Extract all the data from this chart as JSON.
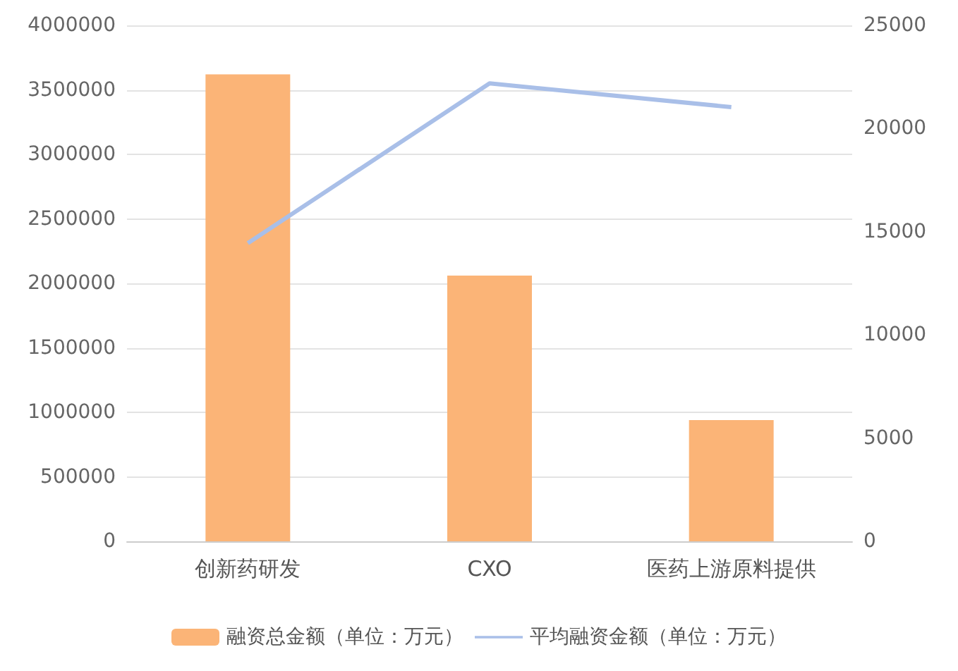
{
  "chart_data": {
    "type": "bar",
    "categories": [
      "创新药研发",
      "CXO",
      "医药上游原料提供"
    ],
    "series": [
      {
        "name": "融资总金额（单位：万元）",
        "color": "#fbb477",
        "values": [
          3620000,
          2060000,
          940000
        ]
      },
      {
        "name": "平均融资金额（单位：万元）",
        "type": "line",
        "axis": "y2",
        "color": "#a9bfe8",
        "values": [
          14450,
          22190,
          21040
        ]
      }
    ],
    "ylim": [
      0,
      4000000
    ],
    "yticks": [
      0,
      500000,
      1000000,
      1500000,
      2000000,
      2500000,
      3000000,
      3500000,
      4000000
    ],
    "y2lim": [
      0,
      25000
    ],
    "y2ticks": [
      0,
      5000,
      10000,
      15000,
      20000,
      25000
    ],
    "grid": "y",
    "legend": "bottom",
    "marker": "none"
  }
}
